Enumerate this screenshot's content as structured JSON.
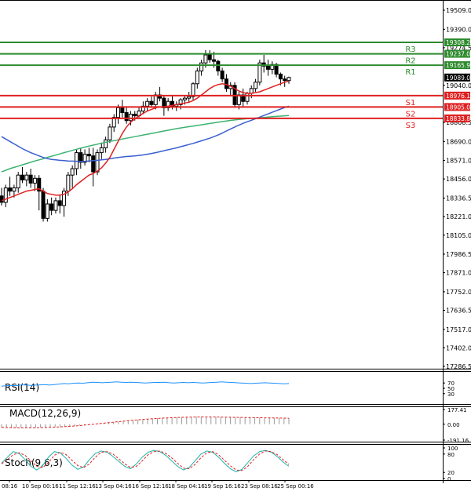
{
  "chart_data": {
    "type": "candlestick",
    "price_axis": {
      "range": [
        17286.5,
        19509.0
      ],
      "ticks": [
        "19509.0",
        "19390.0",
        "19274.5",
        "19040.0",
        "18808.5",
        "18690.0",
        "18571.0",
        "18456.0",
        "18336.5",
        "18221.0",
        "18105.0",
        "17986.5",
        "17871.0",
        "17752.0",
        "17636.5",
        "17517.0",
        "17402.0",
        "17286.5"
      ]
    },
    "levels": [
      {
        "name": "R3",
        "value": 19308.2,
        "label": "19308.2",
        "color": "#2e8b2e"
      },
      {
        "name": "R2",
        "value": 19237.0,
        "label": "19237.0",
        "color": "#2e8b2e"
      },
      {
        "name": "R1",
        "value": 19165.9,
        "label": "19165.9",
        "color": "#2e8b2e"
      },
      {
        "name": "S1",
        "value": 18976.1,
        "label": "18976.1",
        "color": "#e02020"
      },
      {
        "name": "S2",
        "value": 18905.0,
        "label": "18905.0",
        "color": "#e02020"
      },
      {
        "name": "S3",
        "value": 18833.8,
        "label": "18833.8",
        "color": "#e02020"
      }
    ],
    "last_price": {
      "value": 19089.0,
      "label": "19089.0"
    },
    "candles": [
      [
        18350,
        18400,
        18290,
        18310
      ],
      [
        18310,
        18420,
        18280,
        18400
      ],
      [
        18400,
        18470,
        18350,
        18380
      ],
      [
        18380,
        18420,
        18340,
        18400
      ],
      [
        18400,
        18500,
        18370,
        18480
      ],
      [
        18480,
        18530,
        18430,
        18450
      ],
      [
        18450,
        18500,
        18410,
        18480
      ],
      [
        18480,
        18520,
        18400,
        18430
      ],
      [
        18430,
        18480,
        18380,
        18460
      ],
      [
        18460,
        18480,
        18260,
        18380
      ],
      [
        18380,
        18400,
        18190,
        18210
      ],
      [
        18210,
        18330,
        18190,
        18300
      ],
      [
        18300,
        18340,
        18230,
        18260
      ],
      [
        18260,
        18340,
        18240,
        18320
      ],
      [
        18320,
        18360,
        18240,
        18290
      ],
      [
        18290,
        18400,
        18220,
        18380
      ],
      [
        18380,
        18500,
        18350,
        18480
      ],
      [
        18480,
        18540,
        18400,
        18520
      ],
      [
        18520,
        18640,
        18480,
        18620
      ],
      [
        18620,
        18650,
        18520,
        18560
      ],
      [
        18560,
        18640,
        18540,
        18610
      ],
      [
        18610,
        18650,
        18560,
        18600
      ],
      [
        18600,
        18650,
        18410,
        18500
      ],
      [
        18500,
        18640,
        18480,
        18620
      ],
      [
        18620,
        18680,
        18580,
        18650
      ],
      [
        18650,
        18720,
        18620,
        18700
      ],
      [
        18700,
        18800,
        18680,
        18780
      ],
      [
        18780,
        18860,
        18750,
        18840
      ],
      [
        18840,
        18920,
        18800,
        18900
      ],
      [
        18900,
        18950,
        18840,
        18870
      ],
      [
        18870,
        18900,
        18800,
        18820
      ],
      [
        18820,
        18880,
        18790,
        18860
      ],
      [
        18860,
        18880,
        18820,
        18850
      ],
      [
        18850,
        18900,
        18840,
        18880
      ],
      [
        18880,
        18940,
        18860,
        18910
      ],
      [
        18910,
        18960,
        18880,
        18940
      ],
      [
        18940,
        18970,
        18900,
        18920
      ],
      [
        18920,
        19000,
        18890,
        18980
      ],
      [
        18980,
        19030,
        18940,
        18960
      ],
      [
        18960,
        18980,
        18850,
        18900
      ],
      [
        18900,
        18960,
        18880,
        18940
      ],
      [
        18940,
        18980,
        18890,
        18910
      ],
      [
        18910,
        18940,
        18880,
        18920
      ],
      [
        18920,
        18960,
        18890,
        18950
      ],
      [
        18950,
        18980,
        18920,
        18960
      ],
      [
        18960,
        19000,
        18930,
        18970
      ],
      [
        18970,
        19060,
        18950,
        19050
      ],
      [
        19050,
        19150,
        19020,
        19130
      ],
      [
        19130,
        19200,
        19100,
        19180
      ],
      [
        19180,
        19260,
        19150,
        19230
      ],
      [
        19230,
        19260,
        19180,
        19200
      ],
      [
        19200,
        19250,
        19150,
        19190
      ],
      [
        19190,
        19200,
        19100,
        19130
      ],
      [
        19130,
        19150,
        19060,
        19080
      ],
      [
        19080,
        19110,
        19000,
        19020
      ],
      [
        19020,
        19060,
        18980,
        19040
      ],
      [
        19040,
        19060,
        18900,
        18920
      ],
      [
        18920,
        19000,
        18890,
        18980
      ],
      [
        18980,
        19020,
        18900,
        18940
      ],
      [
        18940,
        19000,
        18920,
        18990
      ],
      [
        18990,
        19040,
        18960,
        19020
      ],
      [
        19020,
        19080,
        19000,
        19060
      ],
      [
        19060,
        19200,
        19040,
        19180
      ],
      [
        19180,
        19230,
        19120,
        19160
      ],
      [
        19160,
        19200,
        19100,
        19140
      ],
      [
        19140,
        19190,
        19110,
        19170
      ],
      [
        19170,
        19180,
        19090,
        19110
      ],
      [
        19110,
        19120,
        19040,
        19080
      ],
      [
        19080,
        19100,
        19030,
        19070
      ],
      [
        19070,
        19095,
        19050,
        19089
      ]
    ],
    "sma_fast": [
      18320,
      18330,
      18340,
      18350,
      18360,
      18370,
      18380,
      18385,
      18390,
      18395,
      18380,
      18365,
      18360,
      18355,
      18355,
      18360,
      18375,
      18395,
      18420,
      18440,
      18460,
      18480,
      18490,
      18505,
      18525,
      18555,
      18590,
      18640,
      18690,
      18740,
      18780,
      18810,
      18830,
      18850,
      18865,
      18880,
      18890,
      18900,
      18905,
      18905,
      18910,
      18915,
      18920,
      18925,
      18930,
      18935,
      18945,
      18960,
      18980,
      19000,
      19020,
      19035,
      19045,
      19050,
      19045,
      19035,
      19020,
      19005,
      18995,
      18990,
      18990,
      18995,
      19000,
      19010,
      19020,
      19030,
      19040,
      19050,
      19060,
      19065
    ],
    "sma_mid": [
      18720,
      18705,
      18690,
      18675,
      18660,
      18645,
      18632,
      18620,
      18610,
      18600,
      18590,
      18583,
      18578,
      18575,
      18572,
      18570,
      18568,
      18567,
      18566,
      18565,
      18566,
      18568,
      18570,
      18572,
      18575,
      18578,
      18582,
      18586,
      18590,
      18593,
      18596,
      18598,
      18600,
      18603,
      18606,
      18610,
      18615,
      18620,
      18626,
      18632,
      18638,
      18644,
      18650,
      18657,
      18664,
      18671,
      18678,
      18686,
      18694,
      18702,
      18710,
      18720,
      18730,
      18742,
      18755,
      18768,
      18780,
      18792,
      18803,
      18813,
      18822,
      18832,
      18842,
      18852,
      18862,
      18872,
      18882,
      18892,
      18902,
      18910
    ],
    "sma_slow": [
      18500,
      18510,
      18520,
      18528,
      18536,
      18544,
      18552,
      18560,
      18568,
      18575,
      18582,
      18590,
      18598,
      18605,
      18612,
      18620,
      18627,
      18634,
      18641,
      18648,
      18655,
      18661,
      18667,
      18673,
      18679,
      18685,
      18690,
      18695,
      18700,
      18705,
      18710,
      18715,
      18720,
      18725,
      18730,
      18735,
      18740,
      18745,
      18750,
      18755,
      18760,
      18765,
      18770,
      18774,
      18778,
      18782,
      18786,
      18790,
      18794,
      18798,
      18802,
      18806,
      18810,
      18814,
      18818,
      18821,
      18824,
      18827,
      18830,
      18832,
      18834,
      18836,
      18838,
      18840,
      18842,
      18844,
      18846,
      18848,
      18850,
      18852
    ],
    "time_labels": [
      "08:16",
      "10 Sep 00:16",
      "11 Sep 12:16",
      "13 Sep 04:16",
      "16 Sep 12:16",
      "18 Sep 04:16",
      "19 Sep 16:16",
      "23 Sep 08:16",
      "25 Sep 00:16"
    ],
    "rsi": {
      "title": "RSI(14)",
      "range": [
        0,
        100
      ],
      "ticks": [
        "70",
        "50",
        "30"
      ],
      "values": [
        58,
        60,
        61,
        60,
        62,
        63,
        61,
        62,
        63,
        64,
        62,
        64,
        66,
        68,
        67,
        69,
        70,
        69,
        71,
        73,
        72,
        71,
        72,
        73,
        74,
        73,
        72,
        73,
        72,
        71,
        70,
        71,
        72,
        72,
        73,
        71,
        70,
        71,
        72,
        71,
        72,
        71,
        70,
        71,
        72,
        73,
        74,
        73,
        72,
        71,
        70,
        69,
        68,
        69,
        70,
        71,
        70,
        69,
        68,
        67,
        68
      ]
    },
    "macd": {
      "title": "MACD(12,26,9)",
      "range": [
        -191.16,
        177.41
      ],
      "ticks": [
        "177.41",
        "0.00",
        "-191.16"
      ],
      "histogram": [
        -40,
        -42,
        -44,
        -45,
        -46,
        -45,
        -44,
        -43,
        -42,
        -40,
        -38,
        -36,
        -33,
        -30,
        -26,
        -22,
        -17,
        -12,
        -6,
        0,
        6,
        12,
        18,
        24,
        30,
        36,
        42,
        48,
        54,
        59,
        64,
        68,
        72,
        76,
        79,
        82,
        84,
        86,
        88,
        89,
        90,
        90,
        90,
        89,
        88,
        87,
        86,
        85,
        84,
        83,
        82,
        81,
        80,
        79,
        78,
        77,
        76,
        75,
        74,
        73
      ],
      "signal": [
        -38,
        -40,
        -42,
        -43,
        -44,
        -44,
        -43,
        -42,
        -41,
        -39,
        -37,
        -35,
        -32,
        -29,
        -25,
        -21,
        -16,
        -11,
        -5,
        1,
        7,
        13,
        19,
        25,
        31,
        37,
        43,
        48,
        53,
        58,
        62,
        66,
        70,
        73,
        76,
        79,
        81,
        83,
        85,
        86,
        87,
        88,
        88,
        88,
        87,
        86,
        85,
        84,
        83,
        82,
        81,
        80,
        79,
        78,
        77,
        76,
        75,
        74,
        73,
        72
      ]
    },
    "stoch": {
      "title": "Stoch(9,6,3)",
      "range": [
        0,
        100
      ],
      "ticks": [
        "100",
        "80",
        "20",
        "0"
      ],
      "k": [
        50,
        70,
        88,
        82,
        62,
        40,
        28,
        42,
        70,
        88,
        84,
        66,
        44,
        30,
        38,
        62,
        82,
        90,
        86,
        72,
        56,
        40,
        32,
        48,
        70,
        86,
        92,
        88,
        76,
        58,
        40,
        28,
        36,
        58,
        80,
        90,
        86,
        70,
        50,
        32,
        22,
        30,
        52,
        74,
        88,
        92,
        86,
        72,
        54,
        40
      ],
      "d": [
        48,
        62,
        78,
        84,
        76,
        58,
        40,
        36,
        52,
        76,
        86,
        78,
        60,
        42,
        36,
        48,
        70,
        86,
        88,
        80,
        64,
        48,
        36,
        40,
        58,
        78,
        88,
        90,
        82,
        68,
        50,
        34,
        32,
        46,
        68,
        84,
        88,
        78,
        60,
        42,
        28,
        26,
        40,
        62,
        80,
        90,
        88,
        78,
        62,
        46
      ]
    }
  }
}
